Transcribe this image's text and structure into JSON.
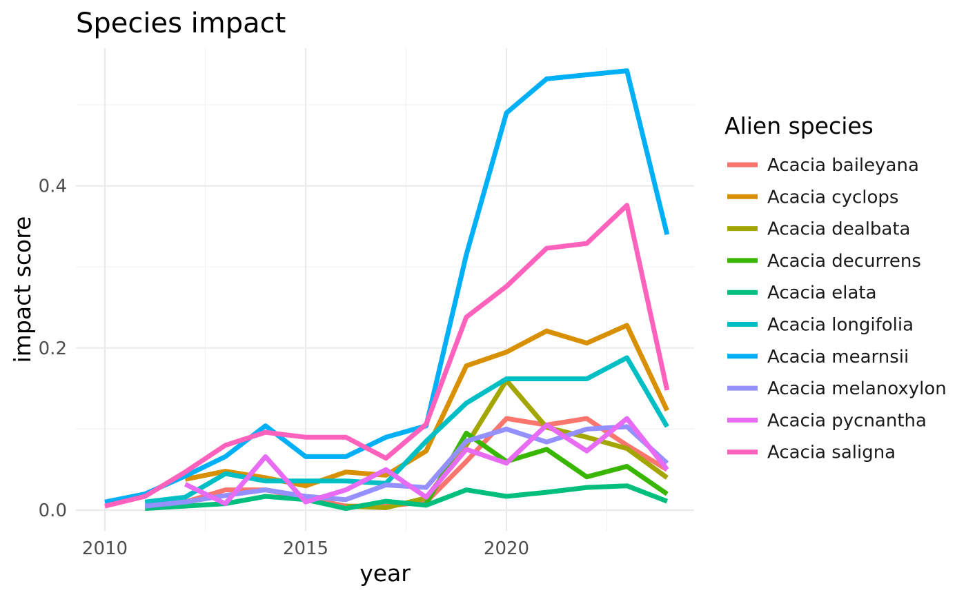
{
  "chart_data": {
    "type": "line",
    "title": "Species impact",
    "xlabel": "year",
    "ylabel": "impact score",
    "xlim": [
      2010,
      2023.7
    ],
    "ylim": [
      -0.02,
      0.57
    ],
    "xticks": [
      2010,
      2015,
      2020
    ],
    "xtick_labels": [
      "2010",
      "2015",
      "2020"
    ],
    "yticks": [
      0.0,
      0.2,
      0.4
    ],
    "ytick_labels": [
      "0.0",
      "0.2",
      "0.4"
    ],
    "grid": true,
    "legend": {
      "title": "Alien species",
      "position": "right"
    },
    "series": [
      {
        "name": "Acacia baileyana",
        "color": "#F8766D",
        "points": [
          [
            2011,
            0.005
          ],
          [
            2012,
            0.01
          ],
          [
            2013,
            0.025
          ],
          [
            2014,
            0.025
          ],
          [
            2015,
            0.015
          ],
          [
            2016,
            0.005
          ],
          [
            2017,
            0.005
          ],
          [
            2018,
            0.01
          ],
          [
            2019,
            0.06
          ],
          [
            2020,
            0.113
          ],
          [
            2021,
            0.105
          ],
          [
            2022,
            0.113
          ],
          [
            2023,
            0.08
          ],
          [
            2024,
            0.05
          ]
        ]
      },
      {
        "name": "Acacia cyclops",
        "color": "#D89000",
        "points": [
          [
            2012,
            0.038
          ],
          [
            2013,
            0.048
          ],
          [
            2014,
            0.04
          ],
          [
            2015,
            0.03
          ],
          [
            2016,
            0.047
          ],
          [
            2017,
            0.043
          ],
          [
            2018,
            0.073
          ],
          [
            2019,
            0.178
          ],
          [
            2020,
            0.195
          ],
          [
            2021,
            0.221
          ],
          [
            2022,
            0.206
          ],
          [
            2023,
            0.228
          ],
          [
            2024,
            0.123
          ]
        ]
      },
      {
        "name": "Acacia dealbata",
        "color": "#A3A500",
        "points": [
          [
            2016,
            0.005
          ],
          [
            2017,
            0.003
          ],
          [
            2018,
            0.015
          ],
          [
            2019,
            0.08
          ],
          [
            2020,
            0.16
          ],
          [
            2021,
            0.102
          ],
          [
            2022,
            0.09
          ],
          [
            2023,
            0.076
          ],
          [
            2024,
            0.04
          ]
        ]
      },
      {
        "name": "Acacia decurrens",
        "color": "#39B600",
        "points": [
          [
            2018,
            0.008
          ],
          [
            2019,
            0.095
          ],
          [
            2020,
            0.06
          ],
          [
            2021,
            0.075
          ],
          [
            2022,
            0.041
          ],
          [
            2023,
            0.054
          ],
          [
            2024,
            0.02
          ]
        ]
      },
      {
        "name": "Acacia elata",
        "color": "#00BF7D",
        "points": [
          [
            2011,
            0.002
          ],
          [
            2012,
            0.005
          ],
          [
            2013,
            0.008
          ],
          [
            2014,
            0.017
          ],
          [
            2015,
            0.013
          ],
          [
            2016,
            0.002
          ],
          [
            2017,
            0.011
          ],
          [
            2018,
            0.006
          ],
          [
            2019,
            0.025
          ],
          [
            2020,
            0.017
          ],
          [
            2021,
            0.022
          ],
          [
            2022,
            0.028
          ],
          [
            2023,
            0.03
          ],
          [
            2024,
            0.011
          ]
        ]
      },
      {
        "name": "Acacia longifolia",
        "color": "#00BFC4",
        "points": [
          [
            2011,
            0.01
          ],
          [
            2012,
            0.016
          ],
          [
            2013,
            0.045
          ],
          [
            2014,
            0.036
          ],
          [
            2015,
            0.036
          ],
          [
            2016,
            0.036
          ],
          [
            2017,
            0.033
          ],
          [
            2018,
            0.085
          ],
          [
            2019,
            0.132
          ],
          [
            2020,
            0.162
          ],
          [
            2021,
            0.162
          ],
          [
            2022,
            0.162
          ],
          [
            2023,
            0.188
          ],
          [
            2024,
            0.103
          ]
        ]
      },
      {
        "name": "Acacia mearnsii",
        "color": "#00B0F6",
        "points": [
          [
            2010,
            0.01
          ],
          [
            2011,
            0.02
          ],
          [
            2012,
            0.042
          ],
          [
            2013,
            0.066
          ],
          [
            2014,
            0.104
          ],
          [
            2015,
            0.066
          ],
          [
            2016,
            0.066
          ],
          [
            2017,
            0.09
          ],
          [
            2018,
            0.104
          ],
          [
            2019,
            0.315
          ],
          [
            2020,
            0.49
          ],
          [
            2021,
            0.532
          ],
          [
            2022,
            0.537
          ],
          [
            2023,
            0.542
          ],
          [
            2024,
            0.34
          ]
        ]
      },
      {
        "name": "Acacia melanoxylon",
        "color": "#9590FF",
        "points": [
          [
            2011,
            0.005
          ],
          [
            2012,
            0.01
          ],
          [
            2013,
            0.018
          ],
          [
            2014,
            0.025
          ],
          [
            2015,
            0.017
          ],
          [
            2016,
            0.013
          ],
          [
            2017,
            0.031
          ],
          [
            2018,
            0.028
          ],
          [
            2019,
            0.085
          ],
          [
            2020,
            0.1
          ],
          [
            2021,
            0.084
          ],
          [
            2022,
            0.1
          ],
          [
            2023,
            0.103
          ],
          [
            2024,
            0.058
          ]
        ]
      },
      {
        "name": "Acacia pycnantha",
        "color": "#E76BF3",
        "points": [
          [
            2012,
            0.032
          ],
          [
            2013,
            0.008
          ],
          [
            2014,
            0.066
          ],
          [
            2015,
            0.01
          ],
          [
            2016,
            0.025
          ],
          [
            2017,
            0.05
          ],
          [
            2018,
            0.016
          ],
          [
            2019,
            0.075
          ],
          [
            2020,
            0.058
          ],
          [
            2021,
            0.105
          ],
          [
            2022,
            0.073
          ],
          [
            2023,
            0.113
          ],
          [
            2024,
            0.05
          ]
        ]
      },
      {
        "name": "Acacia saligna",
        "color": "#FF62BC",
        "points": [
          [
            2010,
            0.005
          ],
          [
            2011,
            0.017
          ],
          [
            2012,
            0.047
          ],
          [
            2013,
            0.08
          ],
          [
            2014,
            0.096
          ],
          [
            2015,
            0.09
          ],
          [
            2016,
            0.09
          ],
          [
            2017,
            0.064
          ],
          [
            2018,
            0.106
          ],
          [
            2019,
            0.238
          ],
          [
            2020,
            0.276
          ],
          [
            2021,
            0.323
          ],
          [
            2022,
            0.329
          ],
          [
            2023,
            0.376
          ],
          [
            2024,
            0.148
          ]
        ]
      }
    ]
  }
}
